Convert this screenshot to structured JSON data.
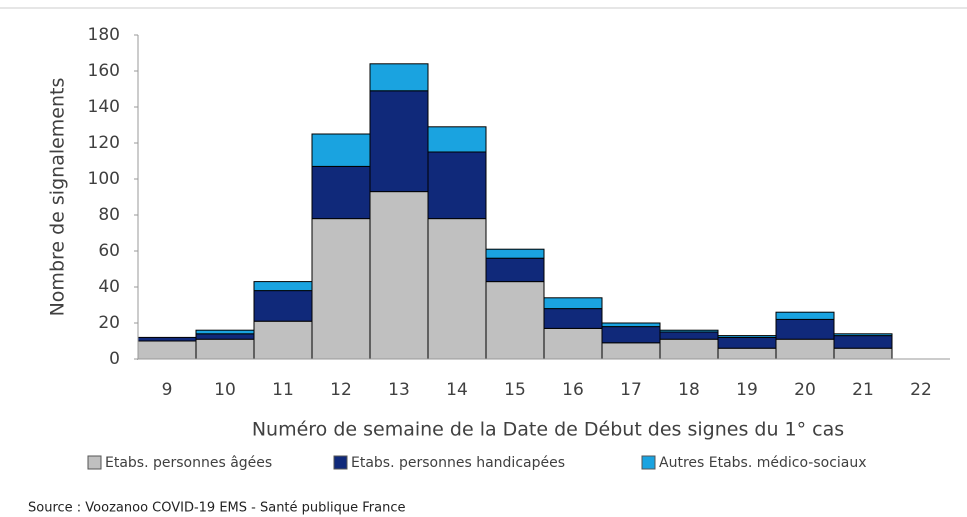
{
  "chart_data": {
    "type": "stacked_bar",
    "x_label": "Numéro de semaine de la Date de Début des signes du 1° cas",
    "y_label": "Nombre de signalements",
    "source": "Source : Voozanoo COVID-19 EMS - Santé publique France",
    "categories": [
      "9",
      "10",
      "11",
      "12",
      "13",
      "14",
      "15",
      "16",
      "17",
      "18",
      "19",
      "20",
      "21",
      "22"
    ],
    "series": [
      {
        "name": "Etabs. personnes âgées",
        "color": "#c0c0c0",
        "values": [
          10,
          11,
          21,
          78,
          93,
          78,
          43,
          17,
          9,
          11,
          6,
          11,
          6,
          0
        ]
      },
      {
        "name": "Etabs. personnes handicapées",
        "color": "#10297a",
        "values": [
          2,
          3,
          17,
          29,
          56,
          37,
          13,
          11,
          9,
          4,
          6,
          11,
          7,
          0
        ]
      },
      {
        "name": "Autres Etabs. médico-sociaux",
        "color": "#1aa3e0",
        "values": [
          0,
          2,
          5,
          18,
          15,
          14,
          5,
          6,
          2,
          1,
          1,
          4,
          1,
          0
        ]
      }
    ],
    "ylim": [
      0,
      180
    ],
    "yticks": [
      0,
      20,
      40,
      60,
      80,
      100,
      120,
      140,
      160,
      180
    ],
    "grid": false,
    "legend": "bottom"
  }
}
